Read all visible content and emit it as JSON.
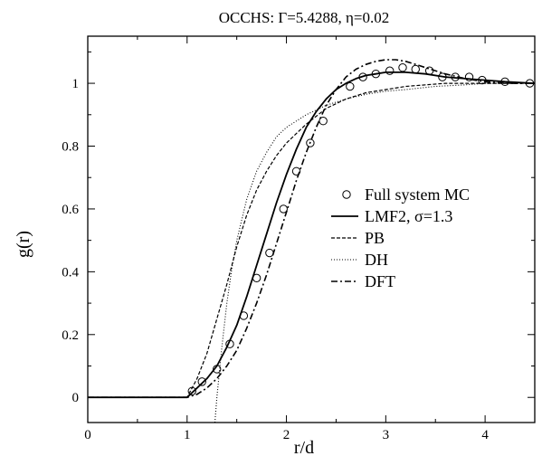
{
  "chart_data": {
    "type": "line",
    "title": "OCCHS: Γ=5.4288,  η=0.02",
    "xlabel": "r/d",
    "ylabel": "g(r)",
    "xlim": [
      0,
      4.5
    ],
    "ylim": [
      -0.08,
      1.15
    ],
    "x_ticks": [
      0,
      1,
      2,
      3,
      4
    ],
    "y_ticks": [
      0,
      0.2,
      0.4,
      0.6,
      0.8,
      1
    ],
    "x_tick_labels": [
      "0",
      "1",
      "2",
      "3",
      "4"
    ],
    "y_tick_labels": [
      "0",
      "0.2",
      "0.4",
      "0.6",
      "0.8",
      "1"
    ],
    "grid": false,
    "legend_position": "right-center",
    "series": [
      {
        "name": "Full system MC",
        "style": "circles",
        "x": [
          1.05,
          1.15,
          1.3,
          1.43,
          1.57,
          1.7,
          1.83,
          1.97,
          2.1,
          2.24,
          2.37,
          2.64,
          2.77,
          2.9,
          3.04,
          3.17,
          3.3,
          3.44,
          3.57,
          3.7,
          3.84,
          3.97,
          4.2,
          4.45
        ],
        "y": [
          0.02,
          0.05,
          0.09,
          0.17,
          0.26,
          0.38,
          0.46,
          0.6,
          0.72,
          0.81,
          0.88,
          0.99,
          1.02,
          1.03,
          1.04,
          1.05,
          1.045,
          1.04,
          1.02,
          1.02,
          1.02,
          1.01,
          1.005,
          1.0
        ]
      },
      {
        "name": "LMF2, σ=1.3",
        "style": "solid",
        "x": [
          0,
          1.0,
          1.1,
          1.2,
          1.3,
          1.4,
          1.5,
          1.6,
          1.7,
          1.8,
          1.9,
          2.0,
          2.1,
          2.2,
          2.3,
          2.4,
          2.5,
          2.6,
          2.7,
          2.8,
          2.9,
          3.0,
          3.2,
          3.4,
          3.6,
          3.8,
          4.0,
          4.2,
          4.5
        ],
        "y": [
          0,
          0,
          0.03,
          0.06,
          0.1,
          0.16,
          0.23,
          0.32,
          0.42,
          0.52,
          0.62,
          0.71,
          0.79,
          0.86,
          0.91,
          0.95,
          0.98,
          1.0,
          1.015,
          1.025,
          1.03,
          1.035,
          1.035,
          1.03,
          1.02,
          1.015,
          1.01,
          1.005,
          1.0
        ]
      },
      {
        "name": "PB",
        "style": "dashed",
        "x": [
          0,
          1.0,
          1.1,
          1.2,
          1.3,
          1.4,
          1.5,
          1.6,
          1.7,
          1.8,
          1.9,
          2.0,
          2.2,
          2.4,
          2.6,
          2.8,
          3.0,
          3.2,
          3.4,
          3.6,
          3.8,
          4.0,
          4.2,
          4.5
        ],
        "y": [
          0,
          0,
          0.06,
          0.14,
          0.25,
          0.36,
          0.48,
          0.58,
          0.66,
          0.72,
          0.77,
          0.81,
          0.87,
          0.92,
          0.95,
          0.97,
          0.98,
          0.99,
          0.995,
          1.0,
          1.0,
          1.0,
          1.0,
          1.0
        ]
      },
      {
        "name": "DH",
        "style": "dotted",
        "x": [
          1.28,
          1.3,
          1.35,
          1.4,
          1.45,
          1.5,
          1.6,
          1.7,
          1.8,
          1.9,
          2.0,
          2.2,
          2.4,
          2.6,
          2.8,
          3.0,
          3.2,
          3.5,
          3.8,
          4.0,
          4.2,
          4.5
        ],
        "y": [
          -0.08,
          0.0,
          0.16,
          0.3,
          0.41,
          0.5,
          0.63,
          0.72,
          0.78,
          0.83,
          0.86,
          0.9,
          0.93,
          0.95,
          0.965,
          0.975,
          0.98,
          0.99,
          0.995,
          1.0,
          1.0,
          1.0
        ]
      },
      {
        "name": "DFT",
        "style": "dashdot",
        "x": [
          0,
          1.0,
          1.1,
          1.2,
          1.3,
          1.4,
          1.5,
          1.6,
          1.7,
          1.8,
          1.9,
          2.0,
          2.1,
          2.2,
          2.3,
          2.4,
          2.5,
          2.6,
          2.7,
          2.8,
          2.9,
          3.0,
          3.1,
          3.2,
          3.3,
          3.4,
          3.6,
          3.8,
          4.0,
          4.2,
          4.5
        ],
        "y": [
          0,
          0,
          0.01,
          0.03,
          0.06,
          0.1,
          0.15,
          0.22,
          0.3,
          0.39,
          0.49,
          0.59,
          0.69,
          0.78,
          0.86,
          0.93,
          0.98,
          1.02,
          1.045,
          1.06,
          1.07,
          1.075,
          1.075,
          1.07,
          1.06,
          1.05,
          1.03,
          1.015,
          1.005,
          1.0,
          1.0
        ]
      }
    ]
  }
}
